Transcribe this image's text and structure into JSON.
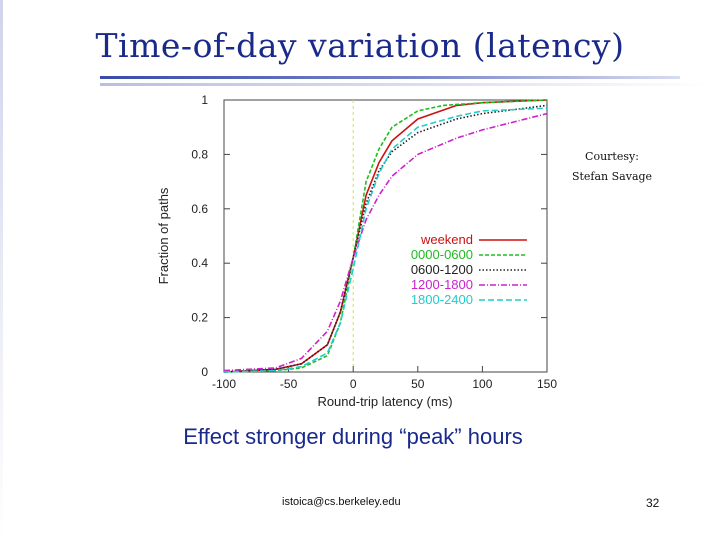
{
  "slide": {
    "title": "Time-of-day variation (latency)",
    "subtitle": "Effect stronger during “peak” hours",
    "courtesy_line1": "Courtesy:",
    "courtesy_line2": "Stefan Savage",
    "footer_email": "istoica@cs.berkeley.edu",
    "page_number": "32"
  },
  "colors": {
    "title": "#1a2a8a",
    "reference_line": "#ccdd66"
  },
  "chart_data": {
    "type": "line",
    "title": "",
    "xlabel": "Round-trip latency (ms)",
    "ylabel": "Fraction of paths",
    "xlim": [
      -100,
      150
    ],
    "ylim": [
      0,
      1
    ],
    "x_ticks": [
      -100,
      -50,
      0,
      50,
      100,
      150
    ],
    "y_ticks": [
      0,
      0.2,
      0.4,
      0.6,
      0.8,
      1
    ],
    "x_tick_labels": [
      "-100",
      "-50",
      "0",
      "50",
      "100",
      "150"
    ],
    "y_tick_labels": [
      "0",
      "0.2",
      "0.4",
      "0.6",
      "0.8",
      "1"
    ],
    "grid": false,
    "reference_line_x": 0,
    "legend_position": "center-right",
    "series": [
      {
        "name": "weekend",
        "color": "#cc1111",
        "dash": "",
        "x": [
          -100,
          -60,
          -40,
          -20,
          -10,
          0,
          10,
          20,
          30,
          50,
          80,
          100,
          150
        ],
        "y": [
          0,
          0.01,
          0.03,
          0.1,
          0.22,
          0.42,
          0.65,
          0.77,
          0.85,
          0.93,
          0.98,
          0.99,
          1.0
        ]
      },
      {
        "name": "0000-0600",
        "color": "#22bb22",
        "dash": "4 2",
        "x": [
          -100,
          -60,
          -40,
          -20,
          -10,
          0,
          10,
          20,
          30,
          50,
          70,
          100,
          150
        ],
        "y": [
          0,
          0.005,
          0.015,
          0.06,
          0.18,
          0.42,
          0.7,
          0.82,
          0.9,
          0.96,
          0.98,
          0.99,
          1.0
        ]
      },
      {
        "name": "0600-1200",
        "color": "#222222",
        "dash": "1.5 2",
        "x": [
          -100,
          -60,
          -40,
          -20,
          -10,
          0,
          10,
          20,
          30,
          50,
          80,
          100,
          150
        ],
        "y": [
          0,
          0.01,
          0.03,
          0.1,
          0.22,
          0.42,
          0.62,
          0.74,
          0.81,
          0.88,
          0.93,
          0.95,
          0.98
        ]
      },
      {
        "name": "1200-1800",
        "color": "#cc22cc",
        "dash": "6 2 1 2",
        "x": [
          -100,
          -60,
          -40,
          -20,
          -10,
          0,
          10,
          20,
          30,
          50,
          80,
          100,
          150
        ],
        "y": [
          0.005,
          0.015,
          0.05,
          0.15,
          0.26,
          0.42,
          0.56,
          0.65,
          0.72,
          0.8,
          0.86,
          0.89,
          0.95
        ]
      },
      {
        "name": "1800-2400",
        "color": "#22cccc",
        "dash": "6 3",
        "x": [
          -100,
          -60,
          -40,
          -20,
          -10,
          0,
          10,
          20,
          30,
          50,
          80,
          100,
          150
        ],
        "y": [
          0,
          0.005,
          0.02,
          0.07,
          0.18,
          0.38,
          0.6,
          0.73,
          0.82,
          0.9,
          0.94,
          0.96,
          0.97
        ]
      }
    ]
  }
}
